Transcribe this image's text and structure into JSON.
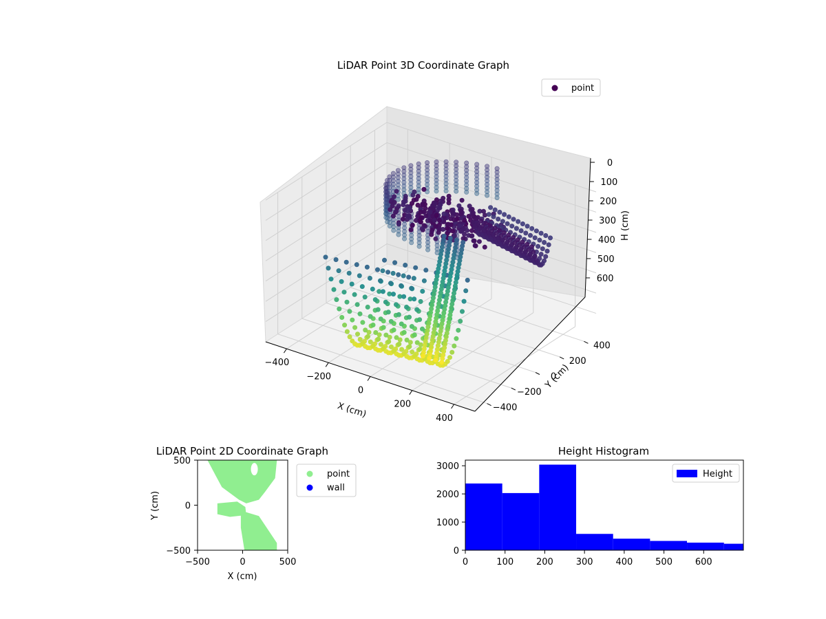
{
  "chart_data": [
    {
      "type": "scatter3d",
      "title": "LiDAR Point 3D Coordinate Graph",
      "xlabel": "X (cm)",
      "ylabel": "Y (cm)",
      "zlabel": "H (cm)",
      "x_ticks": [
        "−400",
        "−200",
        "0",
        "200",
        "400"
      ],
      "y_ticks": [
        "−400",
        "−200",
        "0",
        "200",
        "400"
      ],
      "z_ticks": [
        "0",
        "100",
        "200",
        "300",
        "400",
        "500",
        "600"
      ],
      "xlim": [
        -500,
        500
      ],
      "ylim": [
        -500,
        500
      ],
      "zlim": [
        0,
        700
      ],
      "z_inverted": true,
      "colormap": "viridis",
      "legend": {
        "entries": [
          {
            "name": "point",
            "color": "#440154"
          }
        ],
        "placement": "top-right"
      },
      "grid": true
    },
    {
      "type": "scatter",
      "title": "LiDAR Point 2D Coordinate Graph",
      "xlabel": "X (cm)",
      "ylabel": "Y (cm)",
      "x_ticks": [
        "−500",
        "0",
        "500"
      ],
      "y_ticks": [
        "−500",
        "0",
        "500"
      ],
      "xlim": [
        -500,
        500
      ],
      "ylim": [
        -500,
        500
      ],
      "legend": {
        "entries": [
          {
            "name": "point",
            "color": "#90ee90"
          },
          {
            "name": "wall",
            "color": "#0000ff"
          }
        ],
        "placement": "outside-right"
      },
      "grid": false
    },
    {
      "type": "bar",
      "title": "Height Histogram",
      "legend": {
        "entries": [
          {
            "name": "Height",
            "color": "#0000ff"
          }
        ],
        "placement": "top-right"
      },
      "bin_edges": [
        0,
        93,
        186,
        279,
        372,
        465,
        558,
        651,
        744
      ],
      "values": [
        2370,
        2030,
        3040,
        580,
        410,
        330,
        270,
        230
      ],
      "x_ticks": [
        "0",
        "100",
        "200",
        "300",
        "400",
        "500",
        "600"
      ],
      "y_ticks": [
        "0",
        "1000",
        "2000",
        "3000"
      ],
      "xlim": [
        0,
        700
      ],
      "ylim": [
        0,
        3200
      ],
      "bar_color": "#0000ff",
      "grid": false
    }
  ]
}
